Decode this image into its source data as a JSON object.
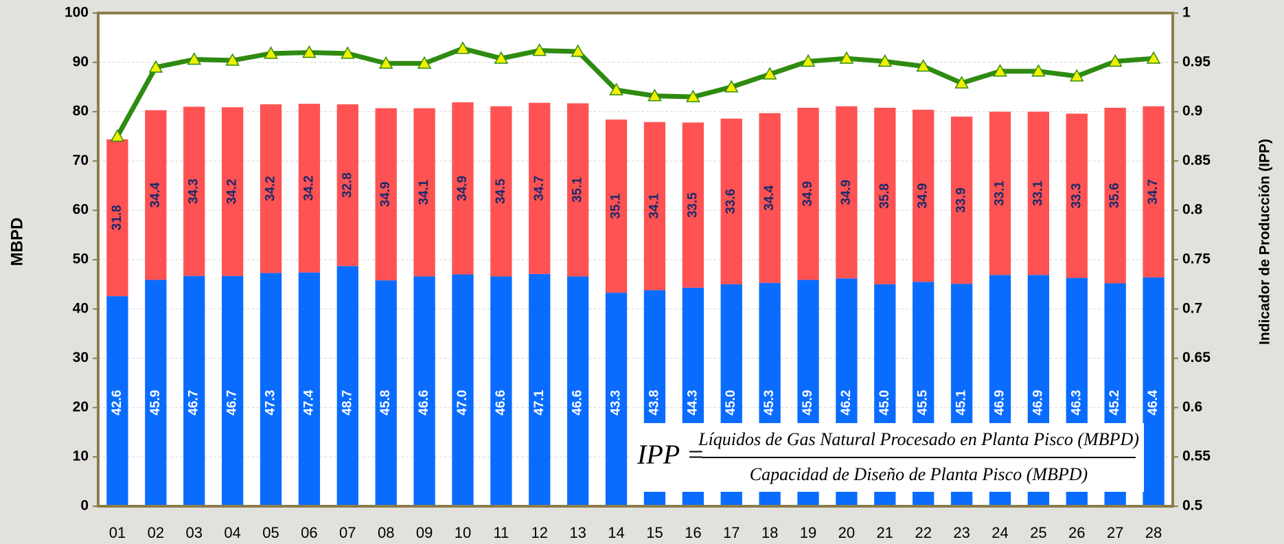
{
  "chart_data": {
    "type": "bar-line",
    "y_label": "MBPD",
    "y2_label": "Indicador de Producción (IPP)",
    "categories": [
      "01",
      "02",
      "03",
      "04",
      "05",
      "06",
      "07",
      "08",
      "09",
      "10",
      "11",
      "12",
      "13",
      "14",
      "15",
      "16",
      "17",
      "18",
      "19",
      "20",
      "21",
      "22",
      "23",
      "24",
      "25",
      "26",
      "27",
      "28"
    ],
    "series": [
      {
        "type": "bar",
        "color": "#0a6cff",
        "label_color": "#ffffff",
        "values": [
          42.6,
          45.9,
          46.7,
          46.7,
          47.3,
          47.4,
          48.7,
          45.8,
          46.6,
          47.0,
          46.6,
          47.1,
          46.6,
          43.3,
          43.8,
          44.3,
          45.0,
          45.3,
          45.9,
          46.2,
          45.0,
          45.5,
          45.1,
          46.9,
          46.9,
          46.3,
          45.2,
          46.4
        ],
        "value_labels": [
          "42.6",
          "45.9",
          "46.7",
          "46.7",
          "47.3",
          "47.4",
          "48.7",
          "45.8",
          "46.6",
          "47.0",
          "46.6",
          "47.1",
          "46.6",
          "43.3",
          "43.8",
          "44.3",
          "45.0",
          "45.3",
          "45.9",
          "46.2",
          "45.0",
          "45.5",
          "45.1",
          "46.9",
          "46.9",
          "46.3",
          "45.2",
          "46.4"
        ]
      },
      {
        "type": "bar",
        "color": "#ff5252",
        "label_color": "#1a2a6c",
        "values": [
          31.8,
          34.4,
          34.3,
          34.2,
          34.2,
          34.2,
          32.8,
          34.9,
          34.1,
          34.9,
          34.5,
          34.7,
          35.1,
          35.1,
          34.1,
          33.5,
          33.6,
          34.4,
          34.9,
          34.9,
          35.8,
          34.9,
          33.9,
          33.1,
          33.1,
          33.3,
          35.6,
          34.7
        ],
        "value_labels": [
          "31.8",
          "34.4",
          "34.3",
          "34.2",
          "34.2",
          "34.2",
          "32.8",
          "34.9",
          "34.1",
          "34.9",
          "34.5",
          "34.7",
          "35.1",
          "35.1",
          "34.1",
          "33.5",
          "33.6",
          "34.4",
          "34.9",
          "34.9",
          "35.8",
          "34.9",
          "33.9",
          "33.1",
          "33.1",
          "33.3",
          "35.6",
          "34.7"
        ]
      },
      {
        "type": "line",
        "axis": "y2",
        "color": "#2e8b10",
        "marker_color": "#f0f000",
        "values": [
          0.875,
          0.945,
          0.953,
          0.952,
          0.959,
          0.96,
          0.959,
          0.949,
          0.949,
          0.964,
          0.954,
          0.962,
          0.961,
          0.922,
          0.916,
          0.915,
          0.925,
          0.938,
          0.951,
          0.954,
          0.951,
          0.946,
          0.929,
          0.941,
          0.941,
          0.936,
          0.951,
          0.954
        ]
      }
    ],
    "ylim": [
      0,
      100
    ],
    "yticks": [
      0,
      10,
      20,
      30,
      40,
      50,
      60,
      70,
      80,
      90,
      100
    ],
    "y2lim": [
      0.5,
      1
    ],
    "y2ticks": [
      0.5,
      0.55,
      0.6,
      0.65,
      0.7,
      0.75,
      0.8,
      0.85,
      0.9,
      0.95,
      1
    ],
    "grid": true,
    "formula": {
      "lhs": "IPP =",
      "numerator": "Líquidos de Gas Natural Procesado en Planta Pisco (MBPD)",
      "denominator": "Capacidad de Diseño de Planta Pisco (MBPD)"
    }
  }
}
